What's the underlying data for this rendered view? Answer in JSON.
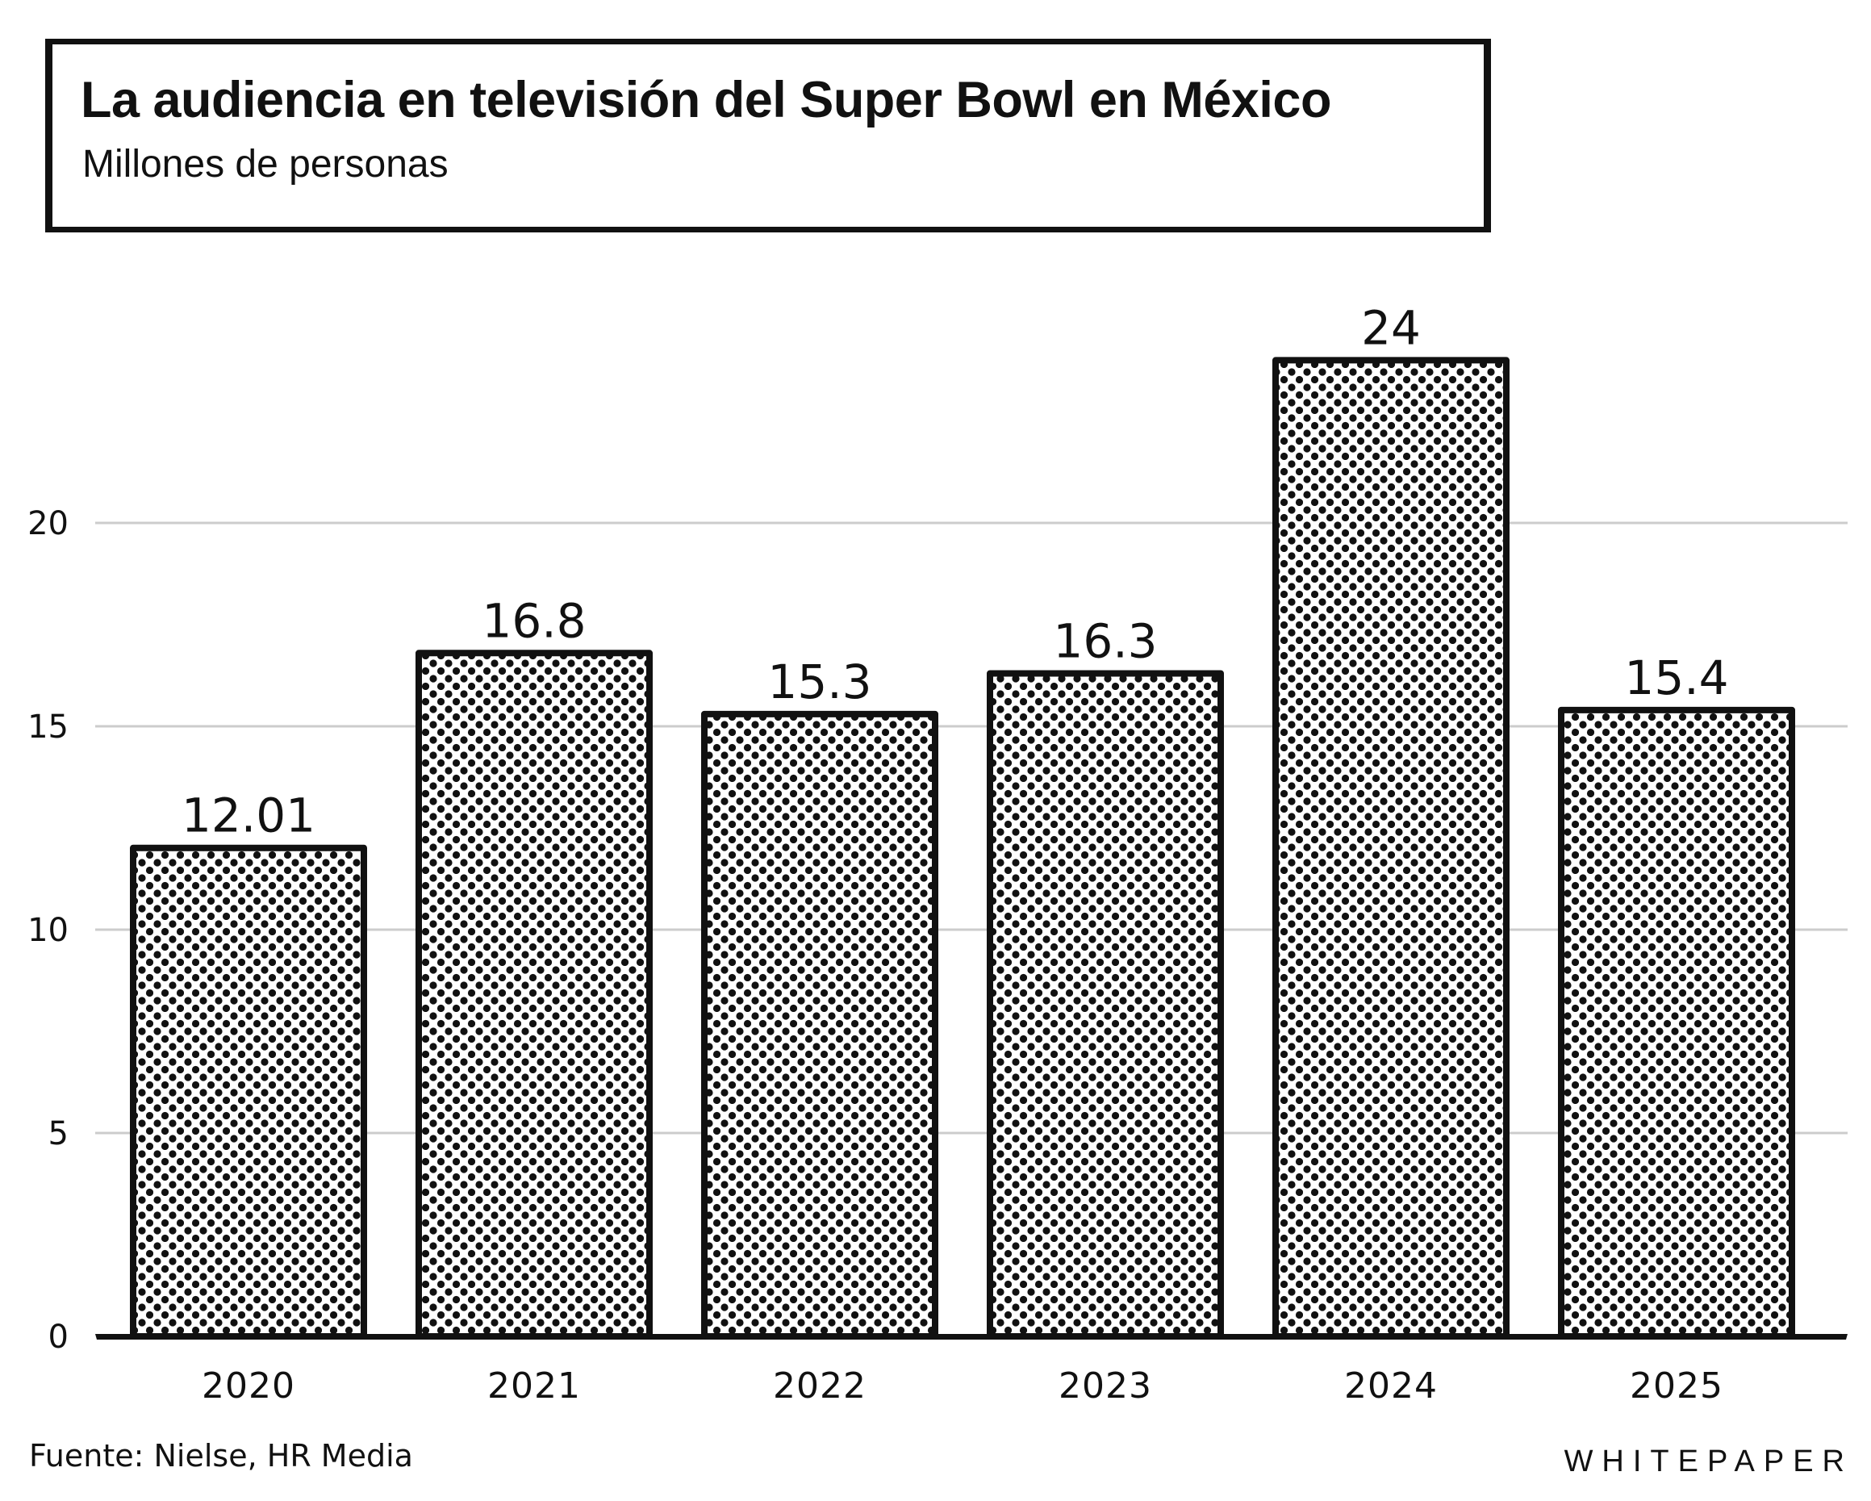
{
  "header": {
    "title": "La audiencia en televisión del Super Bowl en México",
    "subtitle": "Millones de personas"
  },
  "footer": {
    "source": "Fuente: Nielse, HR Media",
    "brand": "WHITEPAPER"
  },
  "colors": {
    "ink": "#111111",
    "grid": "#cccccc",
    "background": "#ffffff"
  },
  "chart_data": {
    "type": "bar",
    "title": "La audiencia en televisión del Super Bowl en México",
    "subtitle": "Millones de personas",
    "xlabel": "",
    "ylabel": "",
    "categories": [
      "2020",
      "2021",
      "2022",
      "2023",
      "2024",
      "2025"
    ],
    "values": [
      12.01,
      16.8,
      15.3,
      16.3,
      24,
      15.4
    ],
    "value_labels": [
      "12.01",
      "16.8",
      "15.3",
      "16.3",
      "24",
      "15.4"
    ],
    "yticks": [
      0,
      5,
      10,
      15,
      20
    ],
    "ylim": [
      0,
      26
    ],
    "grid": true,
    "fill": "dotted pattern"
  }
}
